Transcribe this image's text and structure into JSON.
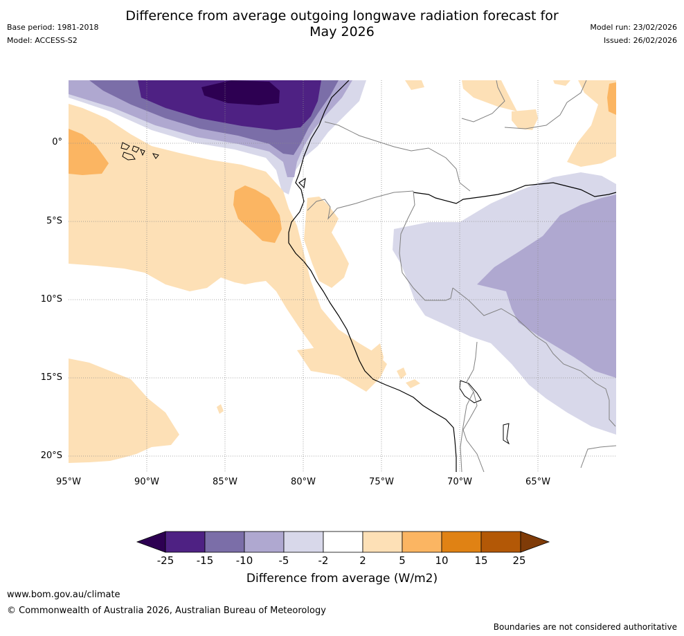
{
  "title": {
    "line1": "Difference from average outgoing longwave radiation forecast for",
    "line2": "May 2026"
  },
  "meta": {
    "base_period": "Base period: 1981-2018",
    "model": "Model: ACCESS-S2",
    "model_run": "Model run: 23/02/2026",
    "issued": "Issued: 26/02/2026"
  },
  "map": {
    "lat_labels": [
      "0°",
      "5°S",
      "10°S",
      "15°S",
      "20°S"
    ],
    "lon_labels": [
      "95°W",
      "90°W",
      "85°W",
      "80°W",
      "75°W",
      "70°W",
      "65°W"
    ]
  },
  "colorbar": {
    "ticks": [
      "-25",
      "-15",
      "-10",
      "-5",
      "-2",
      "2",
      "5",
      "10",
      "15",
      "25"
    ],
    "colors": [
      "#2d0052",
      "#4e2183",
      "#7b6ea8",
      "#afa8d0",
      "#d8d8ea",
      "#ffffff",
      "#fde0b6",
      "#fbb562",
      "#e08214",
      "#b35806",
      "#7f3b08"
    ],
    "label": "Difference from average (W/m2)"
  },
  "footer": {
    "url": "www.bom.gov.au/climate",
    "copyright": "© Commonwealth of Australia 2026, Australian Bureau of Meteorology",
    "disclaimer": "Boundaries are not considered authoritative"
  }
}
